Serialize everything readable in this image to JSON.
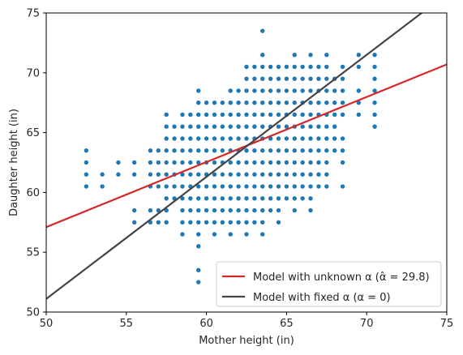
{
  "chart_data": {
    "type": "scatter",
    "xlabel": "Mother height (in)",
    "ylabel": "Daughter height (in)",
    "xlim": [
      50,
      75
    ],
    "ylim": [
      50,
      75
    ],
    "xticks": [
      "50",
      "55",
      "60",
      "65",
      "70",
      "75"
    ],
    "yticks": [
      "50",
      "55",
      "60",
      "65",
      "70",
      "75"
    ],
    "grid": false,
    "legend_position": "lower-right",
    "point_color": "#1f77b4",
    "points_by_x": [
      {
        "x": 52.5,
        "y": [
          60.5,
          61.5,
          62.5,
          63.5
        ]
      },
      {
        "x": 53.5,
        "y": [
          60.5,
          61.5
        ]
      },
      {
        "x": 54.5,
        "y": [
          61.5,
          62.5
        ]
      },
      {
        "x": 55.5,
        "y": [
          57.5,
          58.5,
          61.5,
          62.5
        ]
      },
      {
        "x": 56.5,
        "y": [
          57.5,
          58.5,
          60.5,
          61.5,
          62.5,
          63.5
        ]
      },
      {
        "x": 57.0,
        "y": [
          57.5,
          58.5,
          60.5,
          61.5,
          62.5,
          63.5
        ]
      },
      {
        "x": 57.5,
        "y": [
          57.5,
          58.5,
          59.5,
          60.5,
          61.5,
          62.5,
          63.5,
          64.5,
          65.5,
          66.5
        ]
      },
      {
        "x": 58.0,
        "y": [
          59.5,
          60.5,
          61.5,
          62.5,
          63.5,
          64.5,
          65.5
        ]
      },
      {
        "x": 58.5,
        "y": [
          56.5,
          57.5,
          58.5,
          59.5,
          60.5,
          61.5,
          62.5,
          63.5,
          64.5,
          65.5,
          66.5
        ]
      },
      {
        "x": 59.0,
        "y": [
          57.5,
          58.5,
          59.5,
          60.5,
          61.5,
          62.5,
          63.5,
          64.5,
          65.5,
          66.5
        ]
      },
      {
        "x": 59.5,
        "y": [
          52.5,
          53.5,
          55.5,
          56.5,
          57.5,
          58.5,
          59.5,
          60.5,
          61.5,
          62.5,
          63.5,
          64.5,
          65.5,
          66.5,
          67.5,
          68.5
        ]
      },
      {
        "x": 60.0,
        "y": [
          57.5,
          58.5,
          59.5,
          60.5,
          61.5,
          62.5,
          63.5,
          64.5,
          65.5,
          66.5,
          67.5
        ]
      },
      {
        "x": 60.5,
        "y": [
          56.5,
          57.5,
          58.5,
          59.5,
          60.5,
          61.5,
          62.5,
          63.5,
          64.5,
          65.5,
          66.5,
          67.5
        ]
      },
      {
        "x": 61.0,
        "y": [
          57.5,
          58.5,
          59.5,
          60.5,
          61.5,
          62.5,
          63.5,
          64.5,
          65.5,
          66.5,
          67.5
        ]
      },
      {
        "x": 61.5,
        "y": [
          56.5,
          57.5,
          58.5,
          59.5,
          60.5,
          61.5,
          62.5,
          63.5,
          64.5,
          65.5,
          66.5,
          67.5,
          68.5
        ]
      },
      {
        "x": 62.0,
        "y": [
          57.5,
          58.5,
          59.5,
          60.5,
          61.5,
          62.5,
          63.5,
          64.5,
          65.5,
          66.5,
          67.5,
          68.5
        ]
      },
      {
        "x": 62.5,
        "y": [
          56.5,
          57.5,
          58.5,
          59.5,
          60.5,
          61.5,
          62.5,
          63.5,
          64.5,
          65.5,
          66.5,
          67.5,
          68.5,
          69.5,
          70.5
        ]
      },
      {
        "x": 63.0,
        "y": [
          57.5,
          58.5,
          59.5,
          60.5,
          61.5,
          62.5,
          63.5,
          64.5,
          65.5,
          66.5,
          67.5,
          68.5,
          69.5,
          70.5
        ]
      },
      {
        "x": 63.5,
        "y": [
          56.5,
          57.5,
          58.5,
          59.5,
          60.5,
          61.5,
          62.5,
          63.5,
          64.5,
          65.5,
          66.5,
          67.5,
          68.5,
          69.5,
          70.5,
          71.5,
          73.5
        ]
      },
      {
        "x": 64.0,
        "y": [
          58.5,
          59.5,
          60.5,
          61.5,
          62.5,
          63.5,
          64.5,
          65.5,
          66.5,
          67.5,
          68.5,
          69.5,
          70.5
        ]
      },
      {
        "x": 64.5,
        "y": [
          57.5,
          58.5,
          59.5,
          60.5,
          61.5,
          62.5,
          63.5,
          64.5,
          65.5,
          66.5,
          67.5,
          68.5,
          69.5,
          70.5
        ]
      },
      {
        "x": 65.0,
        "y": [
          59.5,
          60.5,
          61.5,
          62.5,
          63.5,
          64.5,
          65.5,
          66.5,
          67.5,
          68.5,
          69.5,
          70.5
        ]
      },
      {
        "x": 65.5,
        "y": [
          58.5,
          59.5,
          60.5,
          61.5,
          62.5,
          63.5,
          64.5,
          65.5,
          66.5,
          67.5,
          68.5,
          69.5,
          70.5,
          71.5
        ]
      },
      {
        "x": 66.0,
        "y": [
          59.5,
          60.5,
          61.5,
          62.5,
          63.5,
          64.5,
          65.5,
          66.5,
          67.5,
          68.5,
          69.5,
          70.5
        ]
      },
      {
        "x": 66.5,
        "y": [
          58.5,
          59.5,
          60.5,
          61.5,
          62.5,
          63.5,
          64.5,
          65.5,
          66.5,
          67.5,
          68.5,
          69.5,
          70.5,
          71.5
        ]
      },
      {
        "x": 67.0,
        "y": [
          60.5,
          61.5,
          62.5,
          63.5,
          64.5,
          65.5,
          66.5,
          67.5,
          68.5,
          69.5,
          70.5
        ]
      },
      {
        "x": 67.5,
        "y": [
          60.5,
          61.5,
          62.5,
          63.5,
          64.5,
          65.5,
          66.5,
          67.5,
          68.5,
          69.5,
          70.5,
          71.5
        ]
      },
      {
        "x": 68.0,
        "y": [
          63.5,
          64.5,
          65.5,
          66.5,
          67.5,
          68.5,
          69.5
        ]
      },
      {
        "x": 68.5,
        "y": [
          60.5,
          62.5,
          63.5,
          64.5,
          66.5,
          67.5,
          68.5,
          69.5,
          70.5
        ]
      },
      {
        "x": 69.5,
        "y": [
          66.5,
          67.5,
          68.5,
          70.5,
          71.5
        ]
      },
      {
        "x": 70.5,
        "y": [
          65.5,
          66.5,
          67.5,
          68.5,
          69.5,
          70.5,
          71.5
        ]
      }
    ],
    "series": [
      {
        "name": "Model with unknown α (α̂ = 29.8)",
        "type": "line",
        "color": "#d62728",
        "x": [
          50,
          75
        ],
        "y": [
          57.1,
          70.7
        ]
      },
      {
        "name": "Model with fixed α (α = 0)",
        "type": "line",
        "color": "#444444",
        "x": [
          50,
          75
        ],
        "y": [
          51.1,
          76.6
        ]
      }
    ]
  }
}
